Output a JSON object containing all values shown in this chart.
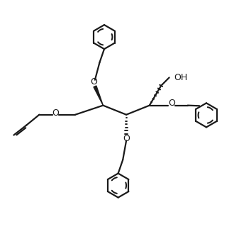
{
  "background": "#ffffff",
  "line_color": "#1a1a1a",
  "line_width": 1.6,
  "fig_size": [
    3.3,
    3.3
  ],
  "dpi": 100,
  "xlim": [
    0,
    10
  ],
  "ylim": [
    0,
    10
  ]
}
